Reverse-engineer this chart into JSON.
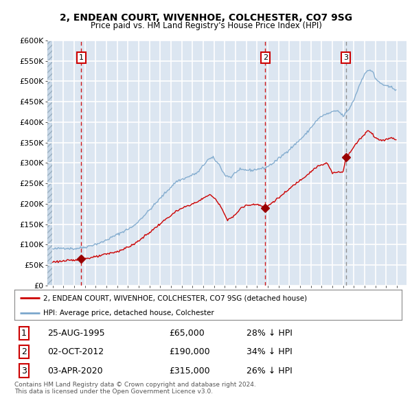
{
  "title1": "2, ENDEAN COURT, WIVENHOE, COLCHESTER, CO7 9SG",
  "title2": "Price paid vs. HM Land Registry's House Price Index (HPI)",
  "legend_line1": "2, ENDEAN COURT, WIVENHOE, COLCHESTER, CO7 9SG (detached house)",
  "legend_line2": "HPI: Average price, detached house, Colchester",
  "footer1": "Contains HM Land Registry data © Crown copyright and database right 2024.",
  "footer2": "This data is licensed under the Open Government Licence v3.0.",
  "purchases": [
    {
      "num": 1,
      "date": "25-AUG-1995",
      "price": 65000,
      "hpi_diff": "28% ↓ HPI",
      "year": 1995.65
    },
    {
      "num": 2,
      "date": "02-OCT-2012",
      "price": 190000,
      "hpi_diff": "34% ↓ HPI",
      "year": 2012.75
    },
    {
      "num": 3,
      "date": "03-APR-2020",
      "price": 315000,
      "hpi_diff": "26% ↓ HPI",
      "year": 2020.25
    }
  ],
  "price_line_color": "#cc0000",
  "hpi_line_color": "#7ba7cc",
  "purchase_marker_color": "#990000",
  "vline_color": "#cc0000",
  "vline3_color": "#888888",
  "bg_color": "#dce6f1",
  "hatch_bg_color": "#c8d8e8",
  "grid_color": "#ffffff",
  "box_color": "#cc0000",
  "ylim": [
    0,
    600000
  ],
  "yticks": [
    0,
    50000,
    100000,
    150000,
    200000,
    250000,
    300000,
    350000,
    400000,
    450000,
    500000,
    550000,
    600000
  ],
  "xlim_start": 1992.5,
  "xlim_end": 2025.9
}
